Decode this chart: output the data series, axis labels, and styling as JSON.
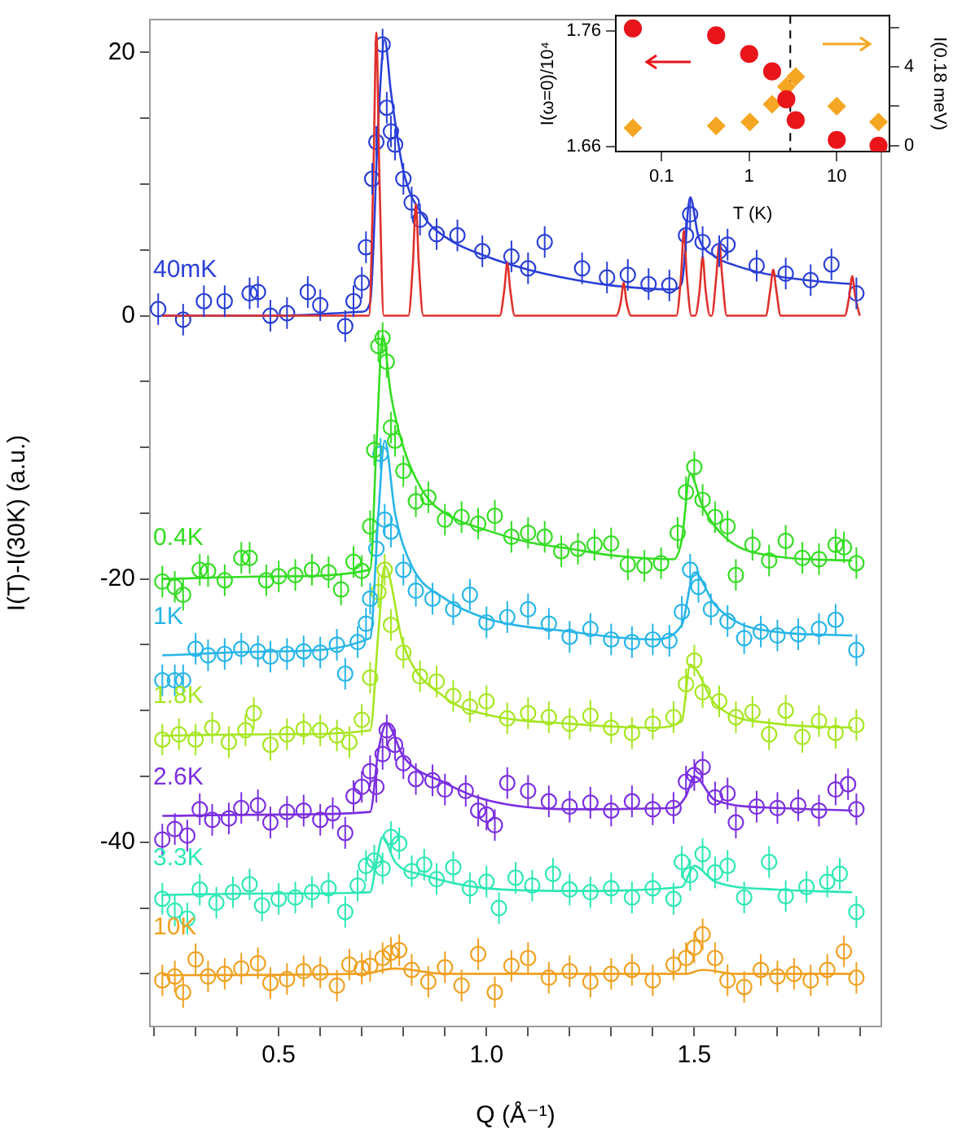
{
  "chart_data": [
    {
      "type": "scatter",
      "xlabel": "Q (Å⁻¹)",
      "ylabel": "I(T)-I(30K) (a.u.)",
      "xlim": [
        0.19,
        1.95
      ],
      "ylim": [
        -54,
        22.5
      ],
      "xticks": [
        {
          "value": 0.2,
          "label": null
        },
        {
          "value": 0.3,
          "label": null
        },
        {
          "value": 0.4,
          "label": null
        },
        0.5,
        {
          "value": 0.6,
          "label": null
        },
        {
          "value": 0.7,
          "label": null
        },
        {
          "value": 0.8,
          "label": null
        },
        {
          "value": 0.9,
          "label": null
        },
        {
          "value": 1,
          "label": "1.0"
        },
        {
          "value": 1.1,
          "label": null
        },
        {
          "value": 1.2,
          "label": null
        },
        {
          "value": 1.3,
          "label": null
        },
        {
          "value": 1.4,
          "label": null
        },
        1.5,
        {
          "value": 1.6,
          "label": null
        },
        {
          "value": 1.7,
          "label": null
        },
        {
          "value": 1.8,
          "label": null
        },
        {
          "value": 1.9,
          "label": null
        }
      ],
      "yticks": [
        {
          "value": -50,
          "label": null
        },
        {
          "value": -45,
          "label": null
        },
        -40,
        {
          "value": -35,
          "label": null
        },
        {
          "value": -30,
          "label": null
        },
        {
          "value": -25,
          "label": null
        },
        -20,
        {
          "value": -15,
          "label": null
        },
        {
          "value": -10,
          "label": null
        },
        {
          "value": -5,
          "label": null
        },
        0,
        {
          "value": 5,
          "label": null
        },
        {
          "value": 10,
          "label": null
        },
        {
          "value": 15,
          "label": null
        },
        20
      ],
      "series": [
        {
          "type": "line",
          "color": "#e0302a",
          "marker": "none",
          "x": [
            0.22,
            0.717,
            0.728,
            0.735,
            0.742,
            0.753,
            0.812,
            0.823,
            0.83,
            0.837,
            0.848,
            1.032,
            1.043,
            1.05,
            1.057,
            1.068,
            1.312,
            1.323,
            1.33,
            1.337,
            1.348,
            1.457,
            1.468,
            1.475,
            1.482,
            1.493,
            1.502,
            1.513,
            1.52,
            1.527,
            1.538,
            1.542,
            1.553,
            1.56,
            1.567,
            1.578,
            1.672,
            1.683,
            1.69,
            1.697,
            1.708,
            1.862,
            1.873,
            1.88,
            1.887,
            1.898
          ],
          "values": [
            0,
            0,
            11,
            21.5,
            11,
            0,
            0,
            4,
            8.5,
            4,
            0,
            0,
            2,
            4,
            2,
            0,
            0,
            1,
            2.5,
            1,
            0,
            0,
            3,
            6.5,
            3,
            0,
            0,
            2,
            4.5,
            2,
            0,
            0,
            3,
            5.5,
            3,
            0,
            0,
            2,
            3.5,
            2,
            0,
            0,
            1.5,
            3,
            1.5,
            0
          ]
        },
        {
          "type": "scatter",
          "name": "40mK",
          "color": "#2a3fd6",
          "marker": "circle",
          "x": [
            0.21,
            0.27,
            0.32,
            0.37,
            0.43,
            0.45,
            0.48,
            0.52,
            0.57,
            0.6,
            0.66,
            0.68,
            0.7,
            0.71,
            0.725,
            0.735,
            0.75,
            0.76,
            0.77,
            0.78,
            0.8,
            0.82,
            0.84,
            0.88,
            0.93,
            0.99,
            1.06,
            1.1,
            1.14,
            1.23,
            1.29,
            1.34,
            1.39,
            1.44,
            1.48,
            1.49,
            1.52,
            1.56,
            1.58,
            1.65,
            1.72,
            1.78,
            1.83,
            1.89
          ],
          "values": [
            0.5,
            -0.3,
            1.1,
            1.1,
            1.7,
            1.8,
            0,
            0.2,
            1.8,
            0.8,
            -0.8,
            1.1,
            2.5,
            5.2,
            10.4,
            13.2,
            20.6,
            15.8,
            14,
            13,
            10.4,
            8.6,
            7.3,
            6.2,
            6.1,
            4.9,
            4.5,
            3.6,
            5.6,
            3.6,
            2.9,
            3.1,
            2.4,
            2.3,
            6.1,
            7.7,
            5.6,
            4.9,
            5.4,
            3.8,
            3.2,
            2.7,
            3.9,
            1.7
          ],
          "errors": [
            1.2,
            1.2,
            1.2,
            1.2,
            1.2,
            1.2,
            1.2,
            1.2,
            1.2,
            1.2,
            1.2,
            1.2,
            1.2,
            1.2,
            1.2,
            1.2,
            1.2,
            1.2,
            1.2,
            1.2,
            1.2,
            1.2,
            1.2,
            1.2,
            1.2,
            1.2,
            1.2,
            1.2,
            1.2,
            1.2,
            1.2,
            1.2,
            1.2,
            1.2,
            1.2,
            1.2,
            1.2,
            1.2,
            1.2,
            1.2,
            1.2,
            1.2,
            1.2,
            1.2
          ]
        },
        {
          "type": "line",
          "color": "#2a3fd6",
          "marker": "none",
          "x": [
            0.22,
            0.5,
            0.7,
            0.72,
            0.74,
            0.755,
            0.77,
            0.8,
            0.85,
            0.9,
            1.0,
            1.1,
            1.2,
            1.3,
            1.45,
            1.47,
            1.49,
            1.51,
            1.55,
            1.6,
            1.7,
            1.8,
            1.88
          ],
          "values": [
            0,
            0,
            0.3,
            1,
            15,
            21,
            17,
            11,
            7.5,
            6,
            4.5,
            3.5,
            2.8,
            2.3,
            2,
            2.5,
            9,
            6,
            4.5,
            3.8,
            3,
            2.6,
            2.4
          ]
        },
        {
          "type": "scatter",
          "name": "0.4K",
          "color": "#33dd22",
          "marker": "circle",
          "x": [
            0.22,
            0.25,
            0.27,
            0.31,
            0.33,
            0.37,
            0.41,
            0.43,
            0.47,
            0.5,
            0.54,
            0.58,
            0.62,
            0.65,
            0.68,
            0.7,
            0.72,
            0.73,
            0.74,
            0.75,
            0.76,
            0.77,
            0.78,
            0.8,
            0.83,
            0.86,
            0.9,
            0.94,
            0.98,
            1.02,
            1.06,
            1.1,
            1.14,
            1.18,
            1.22,
            1.26,
            1.3,
            1.34,
            1.38,
            1.42,
            1.46,
            1.48,
            1.5,
            1.52,
            1.55,
            1.58,
            1.6,
            1.64,
            1.68,
            1.72,
            1.76,
            1.8,
            1.84,
            1.86,
            1.89
          ],
          "values": [
            -20.2,
            -20.6,
            -21.2,
            -19.3,
            -19.4,
            -20.1,
            -18.4,
            -18.4,
            -20.1,
            -19.8,
            -19.7,
            -19.3,
            -19.5,
            -20.8,
            -18.7,
            -19.4,
            -16,
            -10.2,
            -2.3,
            -1.7,
            -3.5,
            -8.5,
            -9.5,
            -11.8,
            -14.1,
            -13.8,
            -15.5,
            -15.3,
            -15.8,
            -15.2,
            -16.8,
            -16.5,
            -16.8,
            -17.9,
            -17.7,
            -17.4,
            -17.3,
            -18.9,
            -19,
            -18.8,
            -16.5,
            -13.4,
            -11.5,
            -14,
            -15.3,
            -16,
            -19.7,
            -17.4,
            -18.6,
            -17.1,
            -18.4,
            -18.5,
            -17.4,
            -17.6,
            -18.8
          ],
          "errors": [
            1.2,
            1.2,
            1.2,
            1.2,
            1.2,
            1.2,
            1.2,
            1.2,
            1.2,
            1.2,
            1.2,
            1.2,
            1.2,
            1.2,
            1.2,
            1.2,
            1.2,
            1.2,
            1.2,
            1.2,
            1.2,
            1.2,
            1.2,
            1.2,
            1.2,
            1.2,
            1.2,
            1.2,
            1.2,
            1.2,
            1.2,
            1.2,
            1.2,
            1.2,
            1.2,
            1.2,
            1.2,
            1.2,
            1.2,
            1.2,
            1.2,
            1.2,
            1.2,
            1.2,
            1.2,
            1.2,
            1.2,
            1.2,
            1.2,
            1.2,
            1.2,
            1.2,
            1.2,
            1.2,
            1.2
          ]
        },
        {
          "type": "line",
          "color": "#33dd22",
          "marker": "none",
          "x": [
            0.22,
            0.5,
            0.72,
            0.735,
            0.75,
            0.77,
            0.8,
            0.85,
            0.9,
            1.0,
            1.1,
            1.2,
            1.3,
            1.45,
            1.47,
            1.49,
            1.52,
            1.58,
            1.7,
            1.88
          ],
          "values": [
            -20,
            -19.8,
            -19.3,
            -10,
            -1.5,
            -6,
            -10,
            -13.5,
            -15,
            -16.3,
            -17.2,
            -17.7,
            -18.2,
            -18.5,
            -17,
            -12,
            -14.5,
            -17,
            -18.3,
            -18.6
          ]
        },
        {
          "type": "scatter",
          "name": "1K",
          "color": "#27b5e8",
          "marker": "circle",
          "x": [
            0.22,
            0.25,
            0.27,
            0.3,
            0.33,
            0.37,
            0.41,
            0.45,
            0.48,
            0.52,
            0.56,
            0.6,
            0.64,
            0.66,
            0.69,
            0.71,
            0.72,
            0.735,
            0.745,
            0.755,
            0.77,
            0.8,
            0.83,
            0.87,
            0.92,
            0.96,
            1.0,
            1.05,
            1.1,
            1.15,
            1.2,
            1.25,
            1.3,
            1.35,
            1.4,
            1.44,
            1.47,
            1.49,
            1.51,
            1.54,
            1.58,
            1.62,
            1.66,
            1.7,
            1.75,
            1.8,
            1.84,
            1.89
          ],
          "values": [
            -27.7,
            -27.7,
            -27.7,
            -25.3,
            -25.8,
            -25.7,
            -25.3,
            -25.5,
            -25.9,
            -25.7,
            -25.5,
            -25.6,
            -25,
            -27.2,
            -24.8,
            -23.4,
            -21.5,
            -17.7,
            -10.5,
            -15.5,
            -16.4,
            -19.3,
            -20.9,
            -21.5,
            -22.3,
            -21.2,
            -23.3,
            -22.9,
            -22.3,
            -23.4,
            -24.4,
            -23.8,
            -24.6,
            -24.8,
            -24.6,
            -24.7,
            -22.5,
            -19.3,
            -20.6,
            -22.3,
            -23.2,
            -24.5,
            -24,
            -24.3,
            -24.2,
            -23.8,
            -23.1,
            -25.4
          ],
          "errors": [
            1.2,
            1.2,
            1.2,
            1.2,
            1.2,
            1.2,
            1.2,
            1.2,
            1.2,
            1.2,
            1.2,
            1.2,
            1.2,
            1.2,
            1.2,
            1.2,
            1.2,
            1.2,
            1.2,
            1.2,
            1.2,
            1.2,
            1.2,
            1.2,
            1.2,
            1.2,
            1.2,
            1.2,
            1.2,
            1.2,
            1.2,
            1.2,
            1.2,
            1.2,
            1.2,
            1.2,
            1.2,
            1.2,
            1.2,
            1.2,
            1.2,
            1.2,
            1.2,
            1.2,
            1.2,
            1.2,
            1.2,
            1.2
          ]
        },
        {
          "type": "line",
          "color": "#27b5e8",
          "marker": "none",
          "x": [
            0.22,
            0.5,
            0.72,
            0.74,
            0.755,
            0.78,
            0.82,
            0.9,
            1.0,
            1.2,
            1.4,
            1.47,
            1.5,
            1.55,
            1.65,
            1.88
          ],
          "values": [
            -25.8,
            -25.5,
            -24.5,
            -15,
            -9.5,
            -15,
            -19,
            -21.5,
            -23,
            -24,
            -24.6,
            -23.5,
            -19.5,
            -22,
            -23.8,
            -24.3
          ]
        },
        {
          "type": "scatter",
          "name": "1.8K",
          "color": "#a6e620",
          "marker": "circle",
          "x": [
            0.22,
            0.26,
            0.3,
            0.34,
            0.38,
            0.42,
            0.44,
            0.48,
            0.52,
            0.56,
            0.6,
            0.64,
            0.67,
            0.7,
            0.72,
            0.74,
            0.755,
            0.77,
            0.8,
            0.84,
            0.88,
            0.92,
            0.96,
            1.0,
            1.05,
            1.1,
            1.15,
            1.2,
            1.25,
            1.3,
            1.35,
            1.4,
            1.45,
            1.48,
            1.5,
            1.52,
            1.56,
            1.6,
            1.64,
            1.68,
            1.72,
            1.76,
            1.8,
            1.84,
            1.89
          ],
          "values": [
            -32.2,
            -31.8,
            -32.2,
            -31.3,
            -32.4,
            -31.5,
            -30.2,
            -32.6,
            -31.8,
            -31.4,
            -31.5,
            -31.9,
            -32.4,
            -30.7,
            -27.5,
            -21,
            -19.3,
            -23.5,
            -25.6,
            -27.4,
            -27.8,
            -28.9,
            -29.7,
            -29.3,
            -30.6,
            -30.2,
            -30.5,
            -31,
            -30.4,
            -31.3,
            -31.7,
            -31,
            -30.5,
            -28,
            -26.2,
            -28.6,
            -29.3,
            -30.5,
            -30.1,
            -31.8,
            -30,
            -32,
            -30.8,
            -31.7,
            -31.1
          ],
          "errors": [
            1.2,
            1.2,
            1.2,
            1.2,
            1.2,
            1.2,
            1.2,
            1.2,
            1.2,
            1.2,
            1.2,
            1.2,
            1.2,
            1.2,
            1.2,
            1.2,
            1.2,
            1.2,
            1.2,
            1.2,
            1.2,
            1.2,
            1.2,
            1.2,
            1.2,
            1.2,
            1.2,
            1.2,
            1.2,
            1.2,
            1.2,
            1.2,
            1.2,
            1.2,
            1.2,
            1.2,
            1.2,
            1.2,
            1.2,
            1.2,
            1.2,
            1.2,
            1.2,
            1.2,
            1.2
          ]
        },
        {
          "type": "line",
          "color": "#a6e620",
          "marker": "none",
          "x": [
            0.22,
            0.5,
            0.72,
            0.74,
            0.755,
            0.8,
            0.9,
            1.0,
            1.2,
            1.4,
            1.47,
            1.49,
            1.55,
            1.7,
            1.88
          ],
          "values": [
            -31.9,
            -31.8,
            -31.5,
            -24,
            -19,
            -25,
            -29,
            -30.3,
            -31,
            -31.3,
            -30.8,
            -26.5,
            -29.5,
            -31,
            -31.3
          ]
        },
        {
          "type": "scatter",
          "name": "2.6K",
          "color": "#7b2fe0",
          "marker": "circle",
          "x": [
            0.22,
            0.25,
            0.28,
            0.31,
            0.34,
            0.38,
            0.41,
            0.45,
            0.48,
            0.52,
            0.56,
            0.6,
            0.63,
            0.66,
            0.68,
            0.7,
            0.72,
            0.735,
            0.75,
            0.76,
            0.78,
            0.8,
            0.83,
            0.87,
            0.9,
            0.95,
            0.98,
            1.0,
            1.02,
            1.05,
            1.1,
            1.15,
            1.2,
            1.25,
            1.3,
            1.35,
            1.4,
            1.45,
            1.48,
            1.5,
            1.52,
            1.55,
            1.58,
            1.6,
            1.65,
            1.7,
            1.75,
            1.8,
            1.84,
            1.87,
            1.89
          ],
          "values": [
            -39.8,
            -39,
            -39.5,
            -37.5,
            -38.3,
            -38.2,
            -37.4,
            -37.2,
            -38.5,
            -37.7,
            -37.6,
            -38.3,
            -37.8,
            -39.3,
            -36.5,
            -35.8,
            -34.6,
            -35.8,
            -33.3,
            -31.5,
            -32.6,
            -34,
            -35.2,
            -35.3,
            -36,
            -36.1,
            -37.6,
            -37.9,
            -38.7,
            -35.5,
            -36.1,
            -36.9,
            -37.3,
            -37,
            -37.6,
            -36.9,
            -37.5,
            -37.4,
            -35.4,
            -34.9,
            -34.3,
            -36.6,
            -36.3,
            -38.5,
            -37.3,
            -37.4,
            -37.2,
            -37.6,
            -36,
            -35.6,
            -37.5
          ],
          "errors": [
            1.2,
            1.2,
            1.2,
            1.2,
            1.2,
            1.2,
            1.2,
            1.2,
            1.2,
            1.2,
            1.2,
            1.2,
            1.2,
            1.2,
            1.2,
            1.2,
            1.2,
            1.2,
            1.2,
            1.2,
            1.2,
            1.2,
            1.2,
            1.2,
            1.2,
            1.2,
            1.2,
            1.2,
            1.2,
            1.2,
            1.2,
            1.2,
            1.2,
            1.2,
            1.2,
            1.2,
            1.2,
            1.2,
            1.2,
            1.2,
            1.2,
            1.2,
            1.2,
            1.2,
            1.2,
            1.2,
            1.2,
            1.2,
            1.2,
            1.2,
            1.2
          ]
        },
        {
          "type": "line",
          "color": "#7b2fe0",
          "marker": "none",
          "x": [
            0.22,
            0.5,
            0.72,
            0.74,
            0.76,
            0.8,
            0.9,
            1.0,
            1.2,
            1.45,
            1.48,
            1.5,
            1.55,
            1.7,
            1.88
          ],
          "values": [
            -38,
            -37.9,
            -37.7,
            -33,
            -31,
            -33.5,
            -35.5,
            -36.8,
            -37.5,
            -37.4,
            -36.5,
            -35,
            -36.8,
            -37.4,
            -37.6
          ]
        },
        {
          "type": "scatter",
          "name": "3.3K",
          "color": "#2de8b5",
          "marker": "circle",
          "x": [
            0.22,
            0.25,
            0.28,
            0.31,
            0.35,
            0.39,
            0.43,
            0.46,
            0.5,
            0.54,
            0.58,
            0.62,
            0.66,
            0.69,
            0.71,
            0.73,
            0.75,
            0.77,
            0.79,
            0.82,
            0.85,
            0.88,
            0.92,
            0.96,
            1.0,
            1.03,
            1.07,
            1.11,
            1.16,
            1.2,
            1.25,
            1.3,
            1.35,
            1.4,
            1.45,
            1.47,
            1.49,
            1.52,
            1.55,
            1.58,
            1.62,
            1.68,
            1.72,
            1.77,
            1.82,
            1.85,
            1.89
          ],
          "values": [
            -44.3,
            -45.2,
            -45.8,
            -43.6,
            -44.6,
            -43.8,
            -43.2,
            -44.8,
            -44.3,
            -44.2,
            -43.8,
            -43.5,
            -45.3,
            -43.3,
            -41.8,
            -41.4,
            -42,
            -39.6,
            -40.1,
            -42.2,
            -41.7,
            -42.8,
            -41.9,
            -43.5,
            -43,
            -45,
            -42.7,
            -43.3,
            -42.4,
            -43.6,
            -43.8,
            -43.5,
            -44.2,
            -43.5,
            -44.3,
            -41.5,
            -42.5,
            -40.9,
            -42.3,
            -41.8,
            -44.2,
            -41.5,
            -44.1,
            -43.4,
            -43,
            -42.4,
            -45.3
          ],
          "errors": [
            1.2,
            1.2,
            1.2,
            1.2,
            1.2,
            1.2,
            1.2,
            1.2,
            1.2,
            1.2,
            1.2,
            1.2,
            1.2,
            1.2,
            1.2,
            1.2,
            1.2,
            1.2,
            1.2,
            1.2,
            1.2,
            1.2,
            1.2,
            1.2,
            1.2,
            1.2,
            1.2,
            1.2,
            1.2,
            1.2,
            1.2,
            1.2,
            1.2,
            1.2,
            1.2,
            1.2,
            1.2,
            1.2,
            1.2,
            1.2,
            1.2,
            1.2,
            1.2,
            1.2,
            1.2,
            1.2,
            1.2
          ]
        },
        {
          "type": "line",
          "color": "#2de8b5",
          "marker": "none",
          "x": [
            0.22,
            0.5,
            0.72,
            0.735,
            0.75,
            0.78,
            0.85,
            1.0,
            1.2,
            1.47,
            1.5,
            1.55,
            1.7,
            1.88
          ],
          "values": [
            -44,
            -43.9,
            -43.8,
            -41.5,
            -39.6,
            -41.5,
            -42.5,
            -43.5,
            -43.7,
            -43.4,
            -41.8,
            -43,
            -43.6,
            -43.8
          ]
        },
        {
          "type": "scatter",
          "name": "10K",
          "color": "#f0a020",
          "marker": "circle",
          "x": [
            0.22,
            0.25,
            0.27,
            0.3,
            0.33,
            0.37,
            0.41,
            0.45,
            0.48,
            0.52,
            0.56,
            0.6,
            0.64,
            0.67,
            0.7,
            0.72,
            0.75,
            0.77,
            0.79,
            0.82,
            0.86,
            0.9,
            0.94,
            0.98,
            1.02,
            1.06,
            1.1,
            1.15,
            1.2,
            1.25,
            1.3,
            1.35,
            1.4,
            1.45,
            1.48,
            1.5,
            1.52,
            1.55,
            1.58,
            1.62,
            1.66,
            1.7,
            1.74,
            1.78,
            1.82,
            1.86,
            1.89
          ],
          "values": [
            -50.5,
            -50.2,
            -51.4,
            -48.9,
            -50.2,
            -50,
            -49.6,
            -49.2,
            -50.7,
            -50.4,
            -49.8,
            -49.9,
            -50.9,
            -49.3,
            -49.6,
            -49.4,
            -48.8,
            -48.4,
            -48.2,
            -49.7,
            -50.6,
            -49.5,
            -50.9,
            -48.5,
            -51.4,
            -49.4,
            -48.8,
            -50.3,
            -49.8,
            -50.6,
            -50,
            -49.7,
            -50.5,
            -49.3,
            -48.8,
            -48,
            -47,
            -48.8,
            -50.5,
            -51,
            -49.7,
            -50.2,
            -50,
            -50.5,
            -49.7,
            -48.3,
            -50.3
          ],
          "errors": [
            1.2,
            1.2,
            1.2,
            1.2,
            1.2,
            1.2,
            1.2,
            1.2,
            1.2,
            1.2,
            1.2,
            1.2,
            1.2,
            1.2,
            1.2,
            1.2,
            1.2,
            1.2,
            1.2,
            1.2,
            1.2,
            1.2,
            1.2,
            1.2,
            1.2,
            1.2,
            1.2,
            1.2,
            1.2,
            1.2,
            1.2,
            1.2,
            1.2,
            1.2,
            1.2,
            1.2,
            1.2,
            1.2,
            1.2,
            1.2,
            1.2,
            1.2,
            1.2,
            1.2,
            1.2,
            1.2,
            1.2
          ]
        },
        {
          "type": "line",
          "color": "#f0a020",
          "marker": "none",
          "x": [
            0.22,
            0.7,
            0.78,
            0.9,
            1.48,
            1.52,
            1.6,
            1.88
          ],
          "values": [
            -50.1,
            -50,
            -49.6,
            -50,
            -50,
            -49.7,
            -50,
            -50
          ]
        }
      ]
    },
    {
      "type": "scatter",
      "xlabel": "T (K)",
      "ylabel": "I(ω=0)/10⁴",
      "y2label": "I(0.18 meV)",
      "log": "x",
      "xlim": [
        0.03,
        40
      ],
      "xticks": [
        0.1,
        1,
        10
      ],
      "ylim": [
        1.656,
        1.773
      ],
      "yticks": [
        1.66,
        1.76
      ],
      "y2lim": [
        -0.3,
        6.6
      ],
      "y2ticks": [
        0,
        {
          "value": 2,
          "label": null
        },
        4,
        {
          "value": 6,
          "label": null
        }
      ],
      "ref_lines": [
        {
          "axis": "x",
          "value": 2.95,
          "color": "#000000",
          "line_style": "dashed"
        }
      ],
      "series": [
        {
          "type": "scatter",
          "color": "#e8151b",
          "marker": "circle",
          "x": [
            0.047,
            0.42,
            1.0,
            1.83,
            2.66,
            3.4,
            10,
            30
          ],
          "values": [
            1.762,
            1.756,
            1.74,
            1.725,
            1.701,
            1.683,
            1.666,
            1.661
          ]
        },
        {
          "type": "scatter",
          "color": "#f5a623",
          "marker": "diamond",
          "axis": "y2",
          "x": [
            0.047,
            0.42,
            1.02,
            1.83,
            2.66,
            3.4,
            10,
            30
          ],
          "values": [
            0.9,
            1.0,
            1.2,
            2.1,
            3.0,
            3.5,
            2.0,
            1.2
          ]
        }
      ]
    }
  ]
}
